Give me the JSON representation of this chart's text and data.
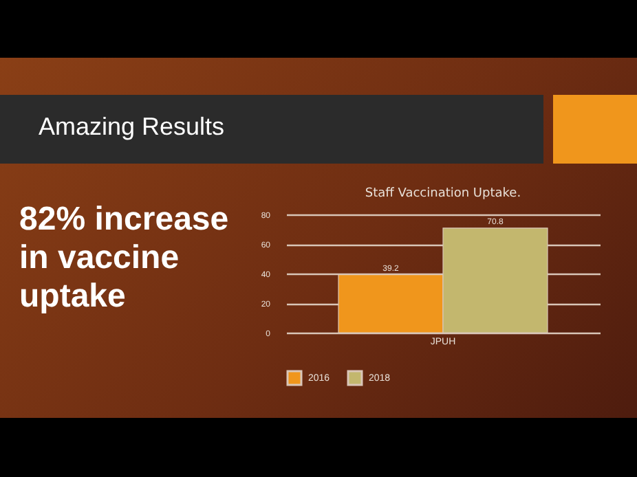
{
  "chart_data": {
    "type": "bar",
    "title": "Staff Vaccination Uptake.",
    "categories": [
      "JPUH"
    ],
    "series": [
      {
        "name": "2016",
        "color": "#f0961c",
        "values": [
          39.2
        ]
      },
      {
        "name": "2018",
        "color": "#c3b76e",
        "values": [
          70.8
        ]
      }
    ],
    "ylim": [
      0,
      80
    ],
    "yticks": [
      0,
      20,
      40,
      60,
      80
    ],
    "grid": "y",
    "legend": "bottom",
    "data_labels": true,
    "annotations": [
      "Amazing Results",
      "82% increase in vaccine uptake"
    ]
  }
}
